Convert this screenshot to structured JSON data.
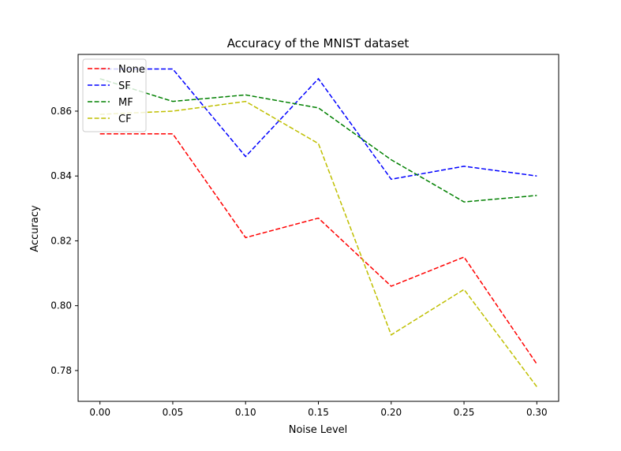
{
  "chart_data": {
    "type": "line",
    "title": "Accuracy of the MNIST dataset",
    "xlabel": "Noise Level",
    "ylabel": "Accuracy",
    "x": [
      0.0,
      0.05,
      0.1,
      0.15,
      0.2,
      0.25,
      0.3
    ],
    "x_tick_labels": [
      "0.00",
      "0.05",
      "0.10",
      "0.15",
      "0.20",
      "0.25",
      "0.30"
    ],
    "y_ticks": [
      0.78,
      0.8,
      0.82,
      0.84,
      0.86
    ],
    "y_tick_labels": [
      "0.78",
      "0.80",
      "0.82",
      "0.84",
      "0.86"
    ],
    "xlim": [
      -0.015,
      0.315
    ],
    "ylim": [
      0.7705,
      0.8775
    ],
    "grid": false,
    "legend_position": "top-left",
    "line_style": "dashed",
    "series": [
      {
        "name": "None",
        "color": "#ff0000",
        "values": [
          0.853,
          0.853,
          0.821,
          0.827,
          0.806,
          0.815,
          0.782
        ]
      },
      {
        "name": "SF",
        "color": "#0000ff",
        "values": [
          0.873,
          0.873,
          0.846,
          0.87,
          0.839,
          0.843,
          0.84
        ]
      },
      {
        "name": "MF",
        "color": "#008000",
        "values": [
          0.87,
          0.863,
          0.865,
          0.861,
          0.845,
          0.832,
          0.834
        ]
      },
      {
        "name": "CF",
        "color": "#bfbf00",
        "values": [
          0.859,
          0.86,
          0.863,
          0.85,
          0.791,
          0.805,
          0.775
        ]
      }
    ]
  }
}
